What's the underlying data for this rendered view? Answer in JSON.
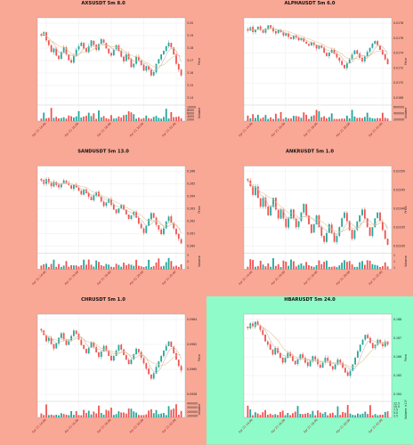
{
  "colors": {
    "page_bg": "#f9a896",
    "highlight_bg": "#8efbc8",
    "panel_bg": "#ffffff",
    "grid": "#e4e4e4",
    "up": "#26a69a",
    "down": "#ef5350",
    "ma_fast": "#c9b7b0",
    "ma_slow": "#e3c48d",
    "date_label": "#8b1a1a"
  },
  "chart_data": [
    {
      "type": "candlestick",
      "title": "AXSUSDT 5m 8.0",
      "highlighted": false,
      "ylabel": "Price",
      "volume_label": "Volume",
      "price_ticks": [
        "3.20",
        "3.19",
        "3.18",
        "3.17",
        "3.16",
        "3.15",
        "3.14"
      ],
      "volume_ticks": [
        "10000",
        "8000",
        "6000",
        "4000",
        "2000"
      ],
      "x_ticks": [
        "Apr 21 14:00",
        "Apr 21 16:00",
        "Apr 21 18:00",
        "Apr 21 20:00",
        "Apr 21 22:00"
      ],
      "ylim": [
        3.135,
        3.205
      ],
      "volume_max": 12000,
      "closes": [
        3.192,
        3.195,
        3.188,
        3.184,
        3.178,
        3.181,
        3.175,
        3.172,
        3.178,
        3.182,
        3.176,
        3.171,
        3.169,
        3.175,
        3.18,
        3.183,
        3.186,
        3.181,
        3.178,
        3.183,
        3.188,
        3.184,
        3.18,
        3.185,
        3.189,
        3.186,
        3.181,
        3.177,
        3.175,
        3.18,
        3.184,
        3.179,
        3.174,
        3.17,
        3.176,
        3.172,
        3.165,
        3.168,
        3.174,
        3.171,
        3.167,
        3.162,
        3.166,
        3.163,
        3.158,
        3.161,
        3.168,
        3.172,
        3.176,
        3.179,
        3.183,
        3.186,
        3.182,
        3.176,
        3.168,
        3.163,
        3.158
      ]
    },
    {
      "type": "candlestick",
      "title": "ALPHAUSDT 5m 6.0",
      "highlighted": false,
      "ylabel": "Price",
      "volume_label": "Volume",
      "price_ticks": [
        "0.0178",
        "0.0176",
        "0.0174",
        "0.0172",
        "0.0170",
        "0.0168"
      ],
      "volume_ticks": [
        "600000",
        "400000",
        "200000"
      ],
      "x_ticks": [
        "Apr 21 14:00",
        "Apr 21 16:00",
        "Apr 21 18:00",
        "Apr 21 20:00",
        "Apr 21 22:00"
      ],
      "ylim": [
        0.01665,
        0.01785
      ],
      "volume_max": 700000,
      "closes": [
        0.0177,
        0.01775,
        0.01768,
        0.01772,
        0.01776,
        0.01771,
        0.01767,
        0.01773,
        0.01778,
        0.01774,
        0.01769,
        0.01766,
        0.01771,
        0.01768,
        0.01763,
        0.01766,
        0.01761,
        0.01758,
        0.01763,
        0.0176,
        0.01756,
        0.01759,
        0.01754,
        0.01751,
        0.01748,
        0.01753,
        0.01749,
        0.01744,
        0.01748,
        0.01745,
        0.01738,
        0.01733,
        0.01738,
        0.01742,
        0.01736,
        0.01731,
        0.01726,
        0.0172,
        0.01715,
        0.01722,
        0.01728,
        0.01735,
        0.01741,
        0.01736,
        0.0173,
        0.01725,
        0.01732,
        0.01739,
        0.01745,
        0.01751,
        0.01755,
        0.01749,
        0.01742,
        0.01735,
        0.01728,
        0.01721
      ]
    },
    {
      "type": "candlestick",
      "title": "SANDUSDT 5m 13.0",
      "highlighted": false,
      "ylabel": "Price",
      "volume_label": "Volume",
      "price_ticks": [
        "0.266",
        "0.265",
        "0.264",
        "0.263",
        "0.262",
        "0.261",
        "0.260"
      ],
      "volume_ticks": [
        "3",
        "2",
        "1"
      ],
      "x_ticks": [
        "Apr 21 14:00",
        "Apr 21 16:00",
        "Apr 21 18:00",
        "Apr 21 20:00",
        "Apr 21 22:00"
      ],
      "ylim": [
        0.2595,
        0.2665
      ],
      "volume_max": 3.5,
      "closes": [
        0.2655,
        0.2652,
        0.2656,
        0.2653,
        0.265,
        0.2654,
        0.2651,
        0.2649,
        0.2652,
        0.2655,
        0.2653,
        0.2651,
        0.2648,
        0.2651,
        0.2649,
        0.2646,
        0.2643,
        0.2647,
        0.2644,
        0.2641,
        0.2638,
        0.2642,
        0.2645,
        0.2641,
        0.2637,
        0.2633,
        0.2636,
        0.2639,
        0.2634,
        0.263,
        0.2627,
        0.2631,
        0.2634,
        0.263,
        0.2626,
        0.2622,
        0.2625,
        0.2628,
        0.2623,
        0.2618,
        0.2614,
        0.261,
        0.2616,
        0.2622,
        0.2627,
        0.2623,
        0.2617,
        0.2613,
        0.2609,
        0.2614,
        0.262,
        0.2624,
        0.2619,
        0.2614,
        0.2609,
        0.2605,
        0.2601
      ]
    },
    {
      "type": "candlestick",
      "title": "ANKRUSDT 5m 1.0",
      "highlighted": false,
      "ylabel": "Price",
      "volume_label": "Volume",
      "price_ticks": [
        "0.02350",
        "0.02345",
        "0.02340",
        "0.02335",
        "0.02330"
      ],
      "volume_ticks": [
        "1",
        "1",
        "1"
      ],
      "x_ticks": [
        "Apr 21 14:00",
        "Apr 21 16:00",
        "Apr 21 18:00",
        "Apr 21 20:00",
        "Apr 21 22:00"
      ],
      "ylim": [
        0.02328,
        0.02356
      ],
      "volume_max": 1.5,
      "closes": [
        0.02352,
        0.0235,
        0.02347,
        0.0235,
        0.02346,
        0.02343,
        0.02346,
        0.02343,
        0.0234,
        0.02343,
        0.02346,
        0.02342,
        0.02339,
        0.02342,
        0.02339,
        0.02336,
        0.02339,
        0.02342,
        0.02339,
        0.02336,
        0.02338,
        0.02341,
        0.02344,
        0.0234,
        0.02337,
        0.02334,
        0.02337,
        0.0234,
        0.02336,
        0.02333,
        0.02331,
        0.02334,
        0.02337,
        0.02334,
        0.02331,
        0.02333,
        0.02336,
        0.02339,
        0.02341,
        0.02338,
        0.02335,
        0.02332,
        0.02335,
        0.02338,
        0.0234,
        0.02342,
        0.02339,
        0.02336,
        0.02333,
        0.02336,
        0.02339,
        0.02341,
        0.02338,
        0.02335,
        0.02332,
        0.0233
      ]
    },
    {
      "type": "candlestick",
      "title": "CHRUSDT 5m 1.0",
      "highlighted": false,
      "ylabel": "Price",
      "volume_label": "Volume",
      "price_ticks": [
        "0.0964",
        "0.0962",
        "0.0960",
        "0.0958"
      ],
      "volume_ticks": [
        "400000",
        "300000",
        "200000",
        "100000"
      ],
      "x_ticks": [
        "Apr 21 14:00",
        "Apr 21 16:00",
        "Apr 21 18:00",
        "Apr 21 20:00",
        "Apr 21 22:00"
      ],
      "ylim": [
        0.09565,
        0.09655
      ],
      "volume_max": 420000,
      "closes": [
        0.0964,
        0.09635,
        0.09628,
        0.09632,
        0.09625,
        0.0962,
        0.09626,
        0.09632,
        0.09637,
        0.0963,
        0.09624,
        0.09629,
        0.09634,
        0.0964,
        0.09636,
        0.0963,
        0.09624,
        0.0962,
        0.09615,
        0.09621,
        0.09627,
        0.09622,
        0.09616,
        0.09611,
        0.09617,
        0.09623,
        0.09618,
        0.09612,
        0.09607,
        0.09612,
        0.09618,
        0.09624,
        0.09619,
        0.09613,
        0.09608,
        0.09603,
        0.09608,
        0.09614,
        0.0962,
        0.09616,
        0.0961,
        0.09604,
        0.09598,
        0.09592,
        0.09587,
        0.09593,
        0.096,
        0.09606,
        0.09612,
        0.09618,
        0.09623,
        0.09628,
        0.09622,
        0.09615,
        0.09608,
        0.09601,
        0.09596
      ]
    },
    {
      "type": "candlestick",
      "title": "HBARUSDT 5m 24.0",
      "highlighted": true,
      "ylabel": "Price",
      "volume_label": "Volume ×10⁷",
      "price_ticks": [
        "0.168",
        "0.167",
        "0.166",
        "0.165",
        "0.164"
      ],
      "volume_ticks": [
        "12.5",
        "10.0",
        "7.5",
        "5.0",
        "2.5"
      ],
      "x_ticks": [
        "Apr 21 14:00",
        "Apr 21 16:00",
        "Apr 21 18:00",
        "Apr 21 20:00",
        "Apr 21 22:00"
      ],
      "ylim": [
        0.1635,
        0.1685
      ],
      "volume_max": 13,
      "closes": [
        0.1678,
        0.1681,
        0.1679,
        0.1682,
        0.168,
        0.1677,
        0.1674,
        0.167,
        0.1668,
        0.1665,
        0.1662,
        0.1666,
        0.1663,
        0.166,
        0.1657,
        0.166,
        0.1663,
        0.1661,
        0.1658,
        0.1656,
        0.1659,
        0.1662,
        0.166,
        0.1657,
        0.1655,
        0.1658,
        0.1661,
        0.1659,
        0.1656,
        0.1654,
        0.1657,
        0.166,
        0.1658,
        0.1655,
        0.1653,
        0.1656,
        0.1659,
        0.1657,
        0.1654,
        0.1651,
        0.1649,
        0.1652,
        0.1656,
        0.166,
        0.1664,
        0.1668,
        0.1671,
        0.1674,
        0.1672,
        0.1669,
        0.1666,
        0.1668,
        0.1671,
        0.1669,
        0.1667,
        0.167,
        0.1668
      ]
    }
  ]
}
